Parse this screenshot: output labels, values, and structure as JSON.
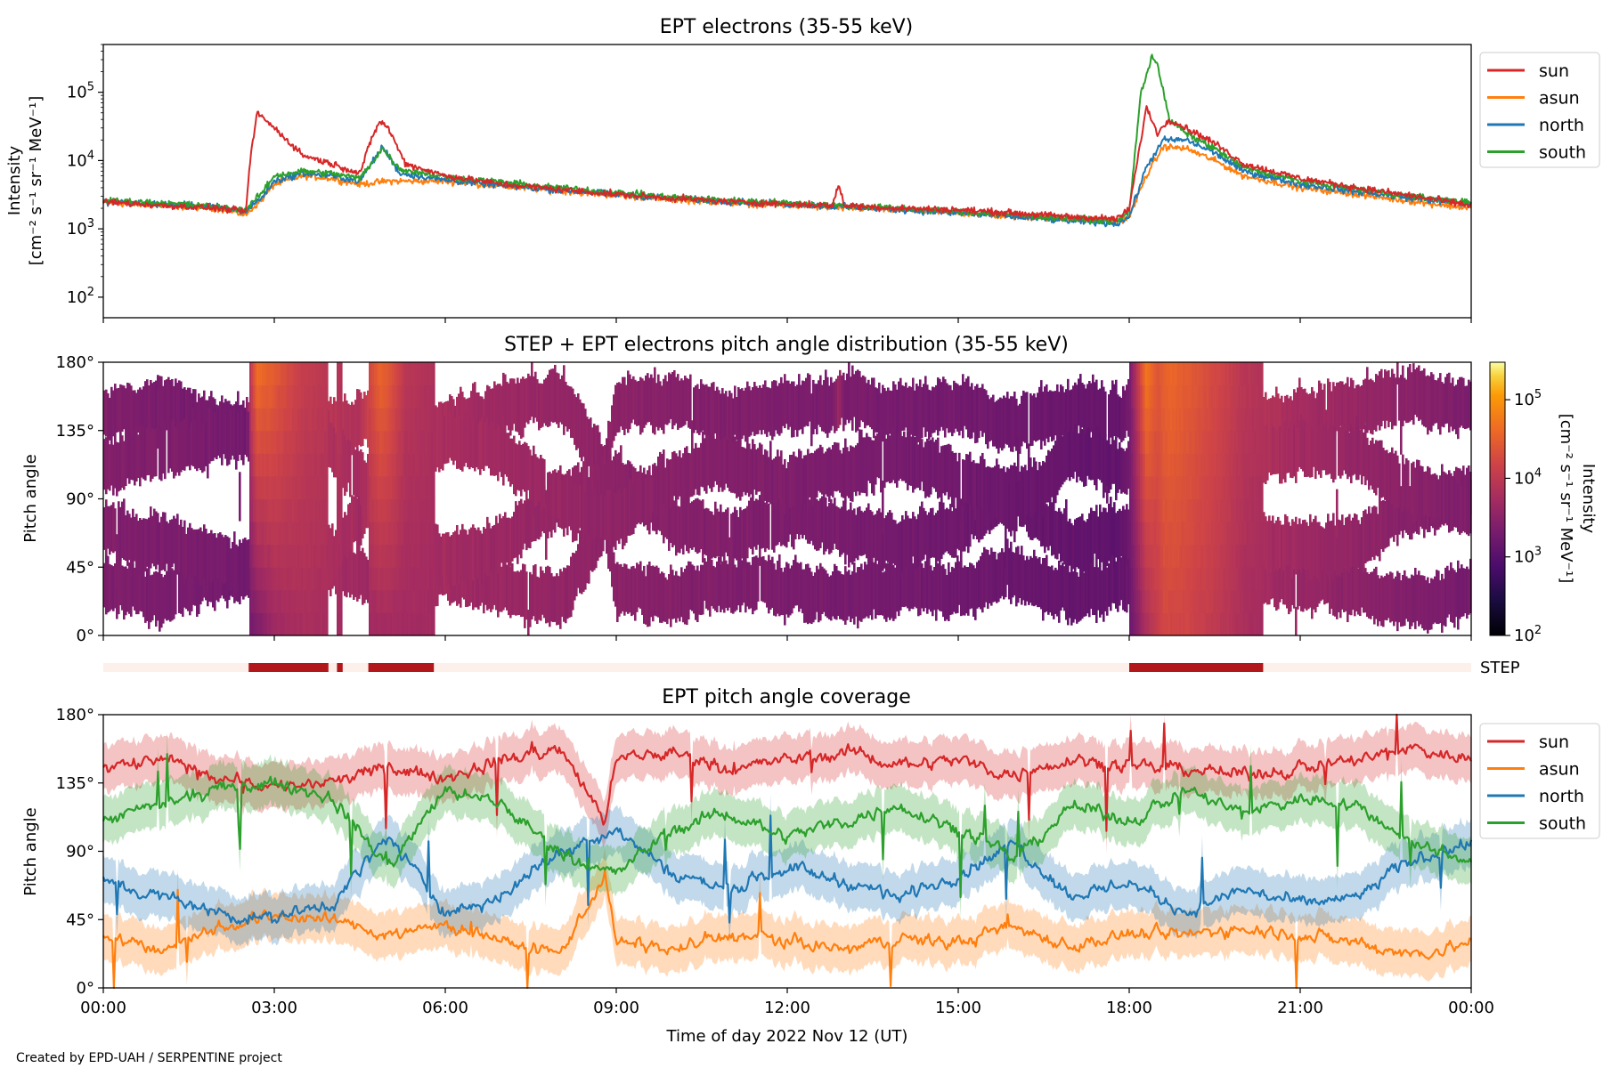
{
  "colors": {
    "sun": "#d62728",
    "asun": "#ff7f0e",
    "north": "#1f77b4",
    "south": "#2ca02c",
    "step_on": "#b2181b",
    "step_off": "#fdf0ea"
  },
  "footer": "Created by EPD-UAH / SERPENTINE project",
  "chart_data": [
    {
      "type": "line",
      "title": "EPT electrons (35-55 keV)",
      "ylabel_line1": "Intensity",
      "ylabel_line2": "[cm⁻² s⁻¹ sr⁻¹ MeV⁻¹]",
      "yscale": "log",
      "ylim": [
        50,
        500000
      ],
      "xlim": [
        0,
        24
      ],
      "yticks": [
        {
          "value": 100,
          "base": "10",
          "exp": "2"
        },
        {
          "value": 1000,
          "base": "10",
          "exp": "3"
        },
        {
          "value": 10000,
          "base": "10",
          "exp": "4"
        },
        {
          "value": 100000,
          "base": "10",
          "exp": "5"
        }
      ],
      "legend_position": "right",
      "series": [
        {
          "name": "sun",
          "color": "#d62728",
          "x": [
            0,
            1,
            2,
            2.5,
            2.6,
            2.7,
            3,
            3.5,
            4,
            4.5,
            4.7,
            4.85,
            5,
            5.3,
            6,
            7,
            8,
            9,
            10,
            11,
            12,
            12.8,
            12.9,
            13,
            14,
            15,
            16,
            17,
            17.8,
            18.0,
            18.1,
            18.3,
            18.5,
            18.7,
            19,
            19.5,
            20,
            21,
            22,
            23,
            24
          ],
          "y": [
            2500,
            2200,
            2000,
            1800,
            15000,
            50000,
            30000,
            12000,
            9000,
            6500,
            20000,
            38000,
            30000,
            9000,
            6000,
            4500,
            3800,
            3200,
            2800,
            2500,
            2300,
            2200,
            4500,
            2200,
            2000,
            1900,
            1700,
            1500,
            1400,
            2000,
            6000,
            60000,
            25000,
            40000,
            30000,
            18000,
            9000,
            5500,
            4000,
            3000,
            2200
          ]
        },
        {
          "name": "asun",
          "color": "#ff7f0e",
          "x": [
            0,
            1,
            2,
            2.5,
            2.8,
            3,
            3.5,
            4,
            4.5,
            5,
            6,
            7,
            8,
            9,
            10,
            11,
            12,
            13,
            14,
            15,
            16,
            17,
            17.8,
            18.0,
            18.3,
            18.6,
            19,
            19.5,
            20,
            21,
            22,
            23,
            24
          ],
          "y": [
            2400,
            2200,
            2000,
            1600,
            2800,
            4500,
            6000,
            5500,
            4500,
            5000,
            5000,
            4200,
            3600,
            3100,
            2700,
            2400,
            2200,
            2000,
            1900,
            1700,
            1500,
            1400,
            1300,
            1500,
            6000,
            16000,
            15000,
            10000,
            6000,
            4000,
            3200,
            2500,
            2000
          ]
        },
        {
          "name": "north",
          "color": "#1f77b4",
          "x": [
            0,
            1,
            2,
            2.5,
            2.8,
            3,
            3.5,
            4,
            4.5,
            4.9,
            5.2,
            6,
            7,
            8,
            9,
            10,
            11,
            12,
            13,
            14,
            15,
            16,
            17,
            17.8,
            18.0,
            18.3,
            18.6,
            19,
            19.5,
            20,
            21,
            22,
            23,
            24
          ],
          "y": [
            2500,
            2300,
            2100,
            1800,
            3000,
            5000,
            6500,
            6000,
            5000,
            16000,
            6500,
            5200,
            4300,
            3700,
            3200,
            2800,
            2500,
            2300,
            2100,
            1900,
            1700,
            1500,
            1300,
            1200,
            1500,
            8000,
            20000,
            20000,
            13000,
            7000,
            4500,
            3500,
            2800,
            2300
          ]
        },
        {
          "name": "south",
          "color": "#2ca02c",
          "x": [
            0,
            1,
            2,
            2.5,
            2.8,
            3,
            3.5,
            4,
            4.5,
            4.9,
            5.2,
            6,
            7,
            8,
            9,
            10,
            11,
            12,
            13,
            14,
            15,
            16,
            17,
            17.8,
            18.0,
            18.2,
            18.4,
            18.5,
            18.7,
            19,
            19.5,
            20,
            21,
            22,
            23,
            24
          ],
          "y": [
            2600,
            2400,
            2100,
            1900,
            3500,
            6000,
            7000,
            6500,
            5500,
            15000,
            7500,
            5800,
            4800,
            4000,
            3400,
            2900,
            2600,
            2400,
            2200,
            2000,
            1800,
            1600,
            1400,
            1300,
            1800,
            90000,
            350000,
            250000,
            40000,
            25000,
            15000,
            8000,
            5000,
            3800,
            3000,
            2400
          ]
        }
      ]
    },
    {
      "type": "heatmap",
      "title": "STEP + EPT electrons pitch angle distribution (35-55 keV)",
      "ylabel": "Pitch angle",
      "ylim": [
        0,
        180
      ],
      "yticks": [
        "0°",
        "45°",
        "90°",
        "135°",
        "180°"
      ],
      "colorbar": {
        "label_line1": "Intensity",
        "label_line2": "[cm⁻² s⁻¹ sr⁻¹ MeV⁻¹]",
        "scale": "log",
        "range": [
          100,
          300000
        ],
        "ticks": [
          {
            "value": 100,
            "base": "10",
            "exp": "2"
          },
          {
            "value": 1000,
            "base": "10",
            "exp": "3"
          },
          {
            "value": 10000,
            "base": "10",
            "exp": "4"
          },
          {
            "value": 100000,
            "base": "10",
            "exp": "5"
          }
        ]
      },
      "step_label": "STEP",
      "step_on_intervals": [
        [
          2.55,
          3.95
        ],
        [
          4.1,
          4.2
        ],
        [
          4.65,
          5.8
        ],
        [
          18.0,
          20.35
        ]
      ]
    },
    {
      "type": "line",
      "title": "EPT pitch angle coverage",
      "ylabel": "Pitch angle",
      "xlabel": "Time of day 2022 Nov 12 (UT)",
      "ylim": [
        0,
        180
      ],
      "xlim": [
        0,
        24
      ],
      "yticks": [
        "0°",
        "45°",
        "90°",
        "135°",
        "180°"
      ],
      "xticks": [
        "00:00",
        "03:00",
        "06:00",
        "09:00",
        "12:00",
        "15:00",
        "18:00",
        "21:00",
        "00:00"
      ],
      "legend_position": "right",
      "series": [
        {
          "name": "sun",
          "color": "#d62728",
          "x": [
            0,
            1,
            2,
            3,
            4,
            5,
            6,
            7,
            8,
            8.8,
            9,
            10,
            11,
            12,
            13,
            14,
            15,
            16,
            17,
            18,
            19,
            20,
            21,
            22,
            23,
            24
          ],
          "y": [
            145,
            150,
            140,
            132,
            135,
            145,
            138,
            150,
            158,
            110,
            150,
            155,
            145,
            150,
            155,
            148,
            150,
            140,
            152,
            145,
            145,
            140,
            145,
            150,
            158,
            150
          ]
        },
        {
          "name": "asun",
          "color": "#ff7f0e",
          "x": [
            0,
            1,
            2,
            3,
            4,
            5,
            6,
            7,
            8,
            8.8,
            9,
            10,
            11,
            12,
            13,
            14,
            15,
            16,
            17,
            18,
            19,
            20,
            21,
            22,
            23,
            24
          ],
          "y": [
            35,
            25,
            40,
            48,
            45,
            35,
            42,
            30,
            22,
            75,
            30,
            25,
            35,
            30,
            25,
            32,
            30,
            40,
            28,
            35,
            35,
            40,
            35,
            30,
            22,
            30
          ]
        },
        {
          "name": "north",
          "color": "#1f77b4",
          "x": [
            0,
            1,
            2,
            3,
            4,
            5,
            6,
            7,
            8,
            9,
            10,
            11,
            12,
            13,
            14,
            15,
            16,
            17,
            18,
            19,
            20,
            21,
            22,
            23,
            24
          ],
          "y": [
            70,
            60,
            50,
            45,
            55,
            100,
            50,
            60,
            90,
            105,
            75,
            65,
            80,
            70,
            60,
            75,
            95,
            60,
            70,
            50,
            65,
            55,
            60,
            85,
            95
          ]
        },
        {
          "name": "south",
          "color": "#2ca02c",
          "x": [
            0,
            1,
            2,
            3,
            4,
            5,
            6,
            7,
            8,
            9,
            10,
            11,
            12,
            13,
            14,
            15,
            16,
            17,
            18,
            19,
            20,
            21,
            22,
            23,
            24
          ],
          "y": [
            110,
            120,
            130,
            135,
            125,
            80,
            130,
            120,
            90,
            75,
            105,
            115,
            100,
            110,
            120,
            105,
            85,
            120,
            110,
            130,
            115,
            125,
            120,
            95,
            85
          ]
        }
      ]
    }
  ]
}
